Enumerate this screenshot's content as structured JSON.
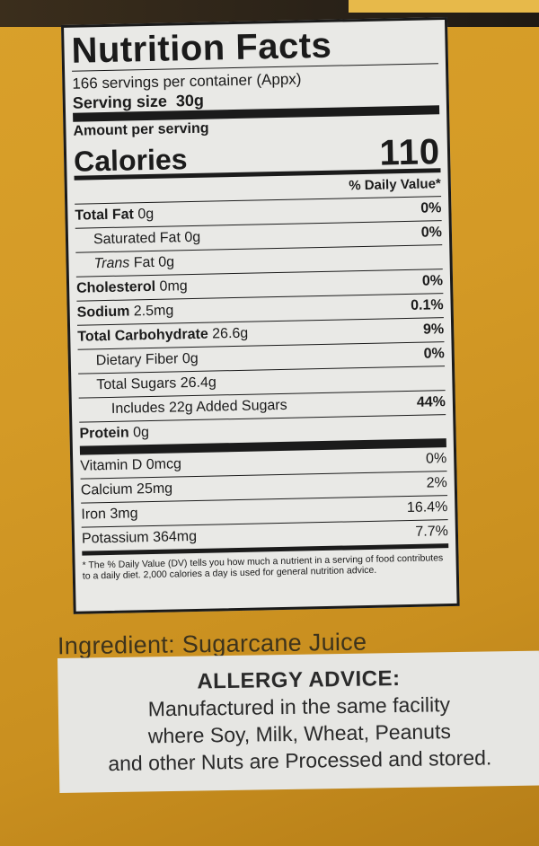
{
  "nutrition": {
    "title": "Nutrition Facts",
    "servings": "166 servings per container (Appx)",
    "serving_size_label": "Serving size",
    "serving_size_value": "30g",
    "amount_per_serving": "Amount per serving",
    "calories_label": "Calories",
    "calories_value": "110",
    "dv_header": "% Daily Value*",
    "nutrients": [
      {
        "label": "Total Fat",
        "amount": "0g",
        "pct": "0%"
      },
      {
        "label": "Saturated Fat",
        "amount": "0g",
        "pct": "0%"
      },
      {
        "label": "Trans",
        "label_suffix": "Fat",
        "amount": "0g",
        "pct": ""
      },
      {
        "label": "Cholesterol",
        "amount": "0mg",
        "pct": "0%"
      },
      {
        "label": "Sodium",
        "amount": "2.5mg",
        "pct": "0.1%"
      },
      {
        "label": "Total Carbohydrate",
        "amount": "26.6g",
        "pct": "9%"
      },
      {
        "label": "Dietary Fiber",
        "amount": "0g",
        "pct": "0%"
      },
      {
        "label": "Total Sugars",
        "amount": "26.4g",
        "pct": ""
      },
      {
        "label": "Includes 22g Added Sugars",
        "amount": "",
        "pct": "44%"
      },
      {
        "label": "Protein",
        "amount": "0g",
        "pct": ""
      }
    ],
    "vitamins": [
      {
        "label": "Vitamin D",
        "amount": "0mcg",
        "pct": "0%"
      },
      {
        "label": "Calcium",
        "amount": "25mg",
        "pct": "2%"
      },
      {
        "label": "Iron",
        "amount": "3mg",
        "pct": "16.4%"
      },
      {
        "label": "Potassium",
        "amount": "364mg",
        "pct": "7.7%"
      }
    ],
    "footnote": "* The % Daily Value (DV) tells you how much a nutrient in a serving of food contributes to a daily diet. 2,000 calories a day is used for general nutrition advice."
  },
  "ingredient": "Ingredient: Sugarcane Juice",
  "allergy": {
    "title": "ALLERGY ADVICE:",
    "lines": [
      "Manufactured in the same facility",
      "where Soy, Milk, Wheat, Peanuts",
      "and other Nuts are Processed and stored."
    ]
  },
  "colors": {
    "box_background": "#d49a26",
    "label_background": "#e9e9e6",
    "text": "#1b1b1b"
  }
}
